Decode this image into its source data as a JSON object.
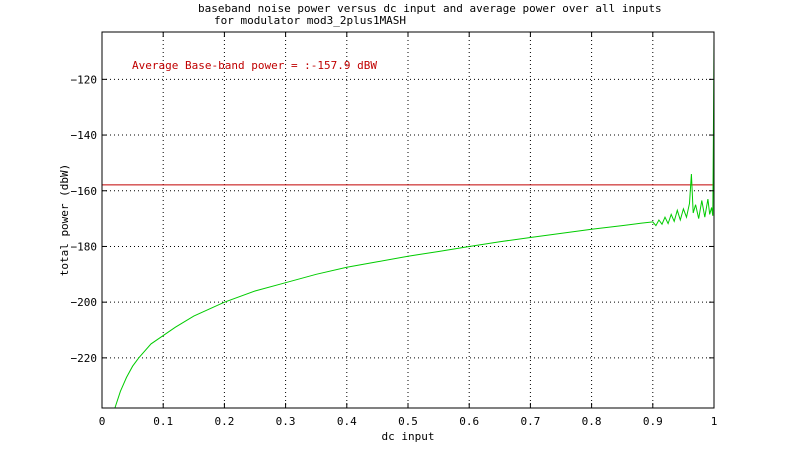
{
  "chart_data": {
    "type": "line",
    "title_lines": [
      "baseband noise power versus dc input and average power over all inputs",
      "for modulator mod3_2plus1MASH"
    ],
    "xlabel": "dc input",
    "ylabel": "total power (dbW)",
    "xlim": [
      0,
      1
    ],
    "ylim": [
      -238,
      -103
    ],
    "grid": true,
    "x_ticks": [
      0,
      0.1,
      0.2,
      0.3,
      0.4,
      0.5,
      0.6,
      0.7,
      0.8,
      0.9,
      1
    ],
    "x_tick_labels": [
      "0",
      "0.1",
      "0.2",
      "0.3",
      "0.4",
      "0.5",
      "0.6",
      "0.7",
      "0.8",
      "0.9",
      "1"
    ],
    "y_ticks": [
      -220,
      -200,
      -180,
      -160,
      -140,
      -120
    ],
    "y_tick_labels": [
      "−220",
      "−200",
      "−180",
      "−160",
      "−140",
      "−120"
    ],
    "annotation": "Average Base-band power = :-157.9 dBW",
    "average_line": {
      "y": -157.9,
      "color": "#c00000"
    },
    "series": [
      {
        "color": "#00cc00",
        "x": [
          0.021,
          0.03,
          0.04,
          0.05,
          0.06,
          0.08,
          0.1,
          0.12,
          0.15,
          0.2,
          0.25,
          0.3,
          0.35,
          0.4,
          0.45,
          0.5,
          0.55,
          0.6,
          0.65,
          0.7,
          0.75,
          0.8,
          0.85,
          0.88,
          0.9,
          0.905,
          0.91,
          0.915,
          0.92,
          0.925,
          0.93,
          0.935,
          0.94,
          0.945,
          0.95,
          0.955,
          0.96,
          0.963,
          0.966,
          0.97,
          0.975,
          0.98,
          0.985,
          0.99,
          0.993,
          0.996,
          0.998,
          0.999,
          1.0
        ],
        "y": [
          -238,
          -232,
          -227,
          -223,
          -220,
          -215,
          -212,
          -209,
          -205,
          -200,
          -196,
          -193,
          -190,
          -187.5,
          -185.5,
          -183.5,
          -181.8,
          -180,
          -178.3,
          -176.8,
          -175.3,
          -173.8,
          -172.5,
          -171.7,
          -171.2,
          -172.5,
          -170.5,
          -172,
          -169.5,
          -171.8,
          -168.5,
          -171,
          -167,
          -170.5,
          -166.5,
          -169.5,
          -164.5,
          -154,
          -168,
          -165,
          -170,
          -163.5,
          -169.5,
          -163,
          -168.5,
          -166,
          -169,
          -140,
          -105
        ]
      }
    ]
  }
}
